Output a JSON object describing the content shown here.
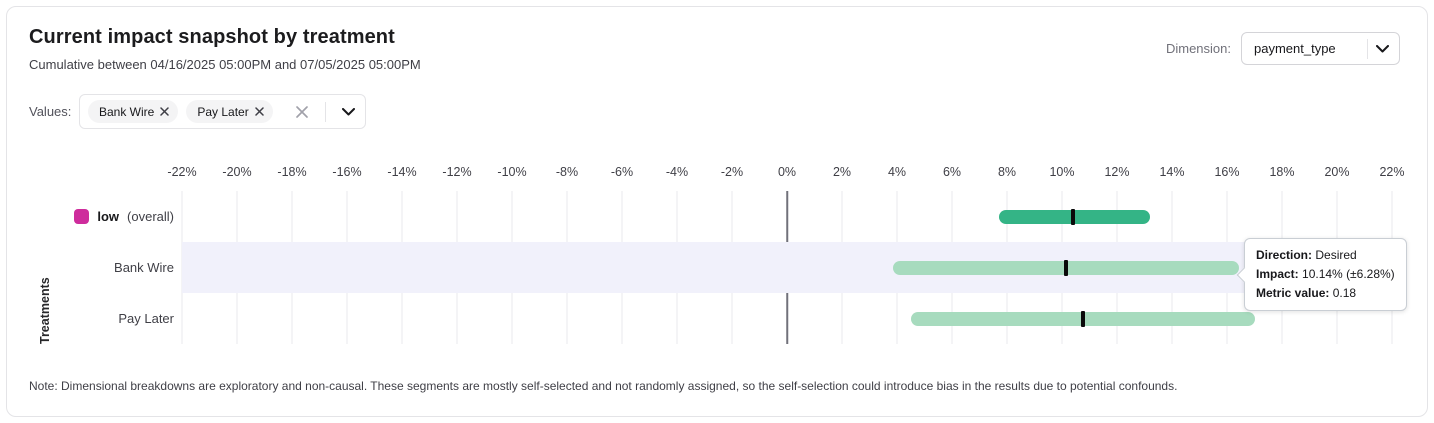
{
  "header": {
    "title": "Current impact snapshot by treatment",
    "subtitle": "Cumulative between 04/16/2025 05:00PM and 07/05/2025 05:00PM",
    "dimension_label": "Dimension:",
    "dimension_value": "payment_type"
  },
  "filters": {
    "values_label": "Values:",
    "chips": [
      {
        "label": "Bank Wire"
      },
      {
        "label": "Pay Later"
      }
    ]
  },
  "chart_data": {
    "type": "bar",
    "subtype": "horizontal-interval",
    "title": "Current impact snapshot by treatment",
    "ylabel": "Treatments",
    "xlabel": "",
    "xlim": [
      -22,
      22
    ],
    "x_ticks": [
      -22,
      -20,
      -18,
      -16,
      -14,
      -12,
      -10,
      -8,
      -6,
      -4,
      -2,
      0,
      2,
      4,
      6,
      8,
      10,
      12,
      14,
      16,
      18,
      20,
      22
    ],
    "x_tick_suffix": "%",
    "grid": true,
    "zero_line": true,
    "rows": [
      {
        "label": "low",
        "label_suffix": "(overall)",
        "label_bold": true,
        "legend_color": "#ce2c9c",
        "bar_color": "#34b486",
        "ci_low": 7.7,
        "ci_high": 13.2,
        "impact": 10.4,
        "highlighted": false
      },
      {
        "label": "Bank Wire",
        "label_suffix": "",
        "label_bold": false,
        "legend_color": "",
        "bar_color": "#a7dbbe",
        "ci_low": 3.86,
        "ci_high": 16.42,
        "impact": 10.14,
        "highlighted": true
      },
      {
        "label": "Pay Later",
        "label_suffix": "",
        "label_bold": false,
        "legend_color": "",
        "bar_color": "#a7dbbe",
        "ci_low": 4.5,
        "ci_high": 17.0,
        "impact": 10.75,
        "highlighted": false
      }
    ],
    "colors": {
      "grid": "#e9e9ec",
      "zero_line": "#71717a",
      "row_highlight": "#f1f1fb",
      "marker": "#0a0a0a"
    }
  },
  "tooltip": {
    "lines": [
      {
        "label": "Direction:",
        "value": "Desired"
      },
      {
        "label": "Impact:",
        "value": "10.14% (±6.28%)"
      },
      {
        "label": "Metric value:",
        "value": "0.18"
      }
    ]
  },
  "note": "Note: Dimensional breakdowns are exploratory and non-causal. These segments are mostly self-selected and not randomly assigned, so the self-selection could introduce bias in the results due to potential confounds."
}
